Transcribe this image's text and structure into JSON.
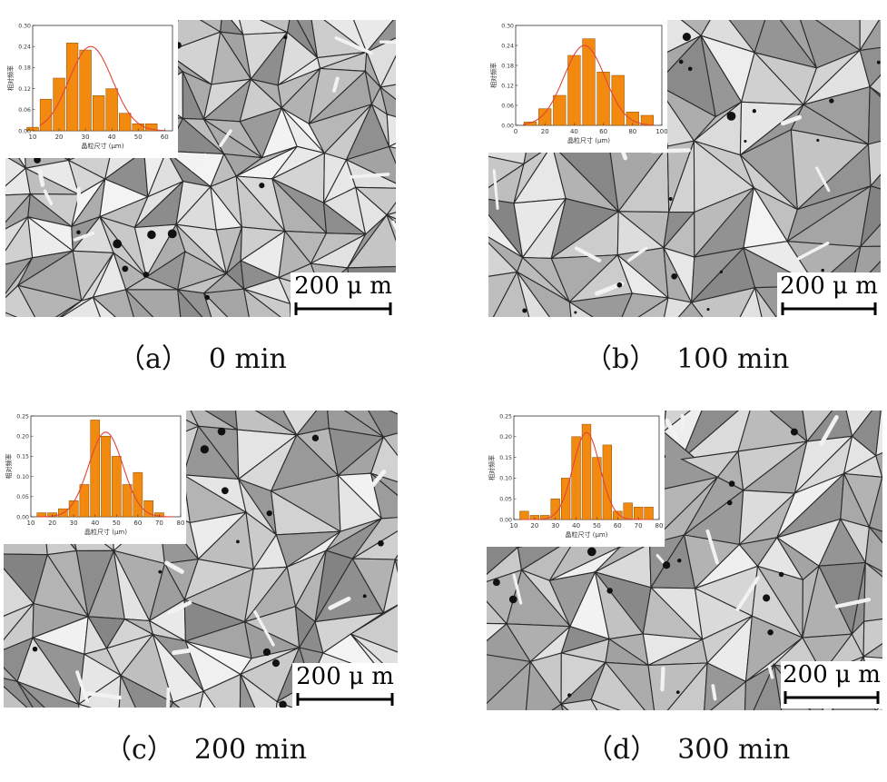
{
  "panels": [
    {
      "id": "a",
      "label": "（a）",
      "time": "0 min",
      "scalebar": "200 μ m",
      "chart_data": {
        "type": "bar",
        "x": [
          10,
          15,
          20,
          25,
          30,
          35,
          40,
          45,
          50,
          55,
          60
        ],
        "values": [
          0.01,
          0.09,
          0.15,
          0.25,
          0.23,
          0.1,
          0.12,
          0.05,
          0.02,
          0.02,
          0
        ],
        "fit": {
          "kind": "gaussian",
          "mean": 32,
          "sd": 8.2,
          "peak": 0.24
        },
        "xticks": [
          10,
          20,
          30,
          40,
          50,
          60
        ],
        "yticks": [
          "0.00",
          "0.06",
          "0.12",
          "0.18",
          "0.24",
          "0.30"
        ],
        "xlim": [
          10,
          63
        ],
        "ylim": [
          0,
          0.3
        ],
        "xlabel": "晶粒尺寸 (μm)",
        "ylabel": "相对频率",
        "bar_width": 4.4
      }
    },
    {
      "id": "b",
      "label": "（b）",
      "time": "100 min",
      "scalebar": "200 μ m",
      "chart_data": {
        "type": "bar",
        "x": [
          10,
          20,
          30,
          40,
          50,
          60,
          70,
          80,
          90
        ],
        "values": [
          0.01,
          0.05,
          0.09,
          0.21,
          0.26,
          0.16,
          0.15,
          0.04,
          0.03
        ],
        "fit": {
          "kind": "gaussian",
          "mean": 47,
          "sd": 14,
          "peak": 0.24
        },
        "xticks": [
          0,
          20,
          40,
          60,
          80,
          100
        ],
        "yticks": [
          "0.00",
          "0.06",
          "0.12",
          "0.18",
          "0.24",
          "0.30"
        ],
        "xlim": [
          0,
          100
        ],
        "ylim": [
          0,
          0.3
        ],
        "xlabel": "晶粒尺寸 (μm)",
        "ylabel": "相对频率",
        "bar_width": 8.5
      }
    },
    {
      "id": "c",
      "label": "（c）",
      "time": "200 min",
      "scalebar": "200 μ m",
      "chart_data": {
        "type": "bar",
        "x": [
          15,
          20,
          25,
          30,
          35,
          40,
          45,
          50,
          55,
          60,
          65,
          70
        ],
        "values": [
          0.01,
          0.01,
          0.02,
          0.04,
          0.08,
          0.24,
          0.2,
          0.15,
          0.08,
          0.11,
          0.04,
          0.01
        ],
        "fit": {
          "kind": "gaussian",
          "mean": 45,
          "sd": 8,
          "peak": 0.21
        },
        "xticks": [
          10,
          20,
          30,
          40,
          50,
          60,
          70,
          80
        ],
        "yticks": [
          "0.00",
          "0.05",
          "0.10",
          "0.15",
          "0.20",
          "0.25"
        ],
        "xlim": [
          10,
          80
        ],
        "ylim": [
          0,
          0.25
        ],
        "xlabel": "晶粒尺寸 (μm)",
        "ylabel": "相对频率",
        "bar_width": 4.3
      }
    },
    {
      "id": "d",
      "label": "（d）",
      "time": "300 min",
      "scalebar": "200 μ m",
      "chart_data": {
        "type": "bar",
        "x": [
          15,
          20,
          25,
          30,
          35,
          40,
          45,
          50,
          55,
          60,
          65,
          70,
          75
        ],
        "values": [
          0.02,
          0.01,
          0.01,
          0.05,
          0.1,
          0.2,
          0.23,
          0.15,
          0.18,
          0.02,
          0.04,
          0.03,
          0.03
        ],
        "fit": {
          "kind": "gaussian",
          "mean": 45,
          "sd": 6.5,
          "peak": 0.21
        },
        "xticks": [
          10,
          20,
          30,
          40,
          50,
          60,
          70,
          80
        ],
        "yticks": [
          "0.00",
          "0.05",
          "0.10",
          "0.15",
          "0.20",
          "0.25"
        ],
        "xlim": [
          10,
          80
        ],
        "ylim": [
          0,
          0.25
        ],
        "xlabel": "晶粒尺寸 (μm)",
        "ylabel": "相对频率",
        "bar_width": 4.3
      }
    }
  ],
  "colors": {
    "bar_fill": "#f28a10",
    "bar_edge": "#8a4a00",
    "fit_line": "#e0453a",
    "axis": "#333333",
    "micrograph_bg": "#bdbdbd",
    "grain_boundary": "#2a2a2a"
  }
}
